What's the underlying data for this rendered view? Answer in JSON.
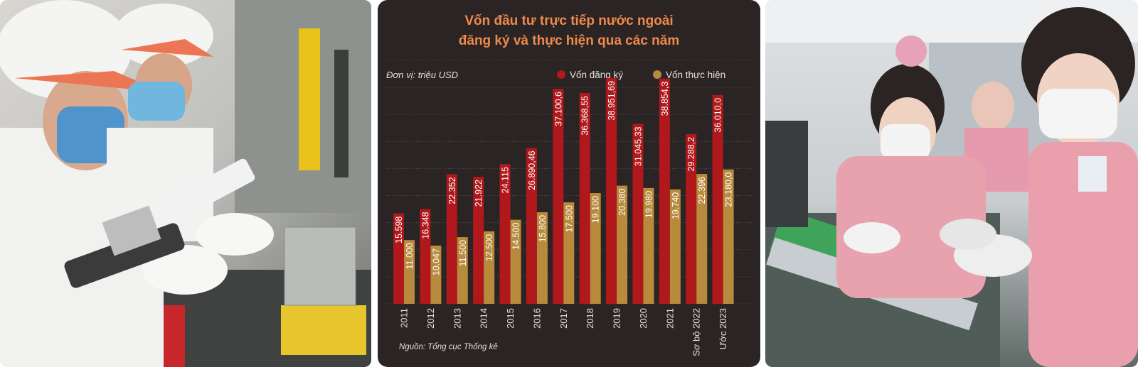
{
  "photos": {
    "left": {
      "label": ""
    },
    "right": {
      "label": ""
    }
  },
  "colors": {
    "panel_bg": "#2a2424",
    "title": "#f08a4b",
    "registered": "#b0181b",
    "implemented": "#b88a3c",
    "text": "#e6e0da",
    "grid": "#5c5252"
  },
  "chart_data": {
    "type": "bar",
    "title": "Vốn đầu tư trực tiếp nước ngoài đăng ký và thực hiện qua các năm",
    "title_lines": [
      "Vốn đầu tư trực tiếp nước ngoài",
      "đăng ký và thực hiện qua các năm"
    ],
    "unit": "Đơn vị: triệu USD",
    "source": "Nguồn: Tổng cục Thống kê",
    "legend_position": "top-right",
    "grid": true,
    "ylim": [
      0,
      42000
    ],
    "categories": [
      "2011",
      "2012",
      "2013",
      "2014",
      "2015",
      "2016",
      "2017",
      "2018",
      "2019",
      "2020",
      "2021",
      "Sơ bộ 2022",
      "Ước 2023"
    ],
    "series": [
      {
        "name": "Vốn đăng ký",
        "values": [
          15598,
          16348,
          22352,
          21922,
          24115,
          26890.46,
          37100.6,
          36368.55,
          38951.69,
          31045.33,
          38854.3,
          29288.2,
          36010.0
        ],
        "labels": [
          "15.598",
          "16.348",
          "22.352",
          "21.922",
          "24.115",
          "26.890,46",
          "37.100,6",
          "36.368,55",
          "38.951,69",
          "31.045,33",
          "38.854,3",
          "29.288,2",
          "36.010,0"
        ]
      },
      {
        "name": "Vốn thực hiện",
        "values": [
          11000,
          10047,
          11500,
          12500,
          14500,
          15800,
          17500,
          19100,
          20380,
          19980,
          19740,
          22396,
          23180.0
        ],
        "labels": [
          "11.000",
          "10.047",
          "11.500",
          "12.500",
          "14.500",
          "15.800",
          "17.500",
          "19.100",
          "20.380",
          "19.980",
          "19.740",
          "22.396",
          "23.180,0"
        ]
      }
    ]
  }
}
